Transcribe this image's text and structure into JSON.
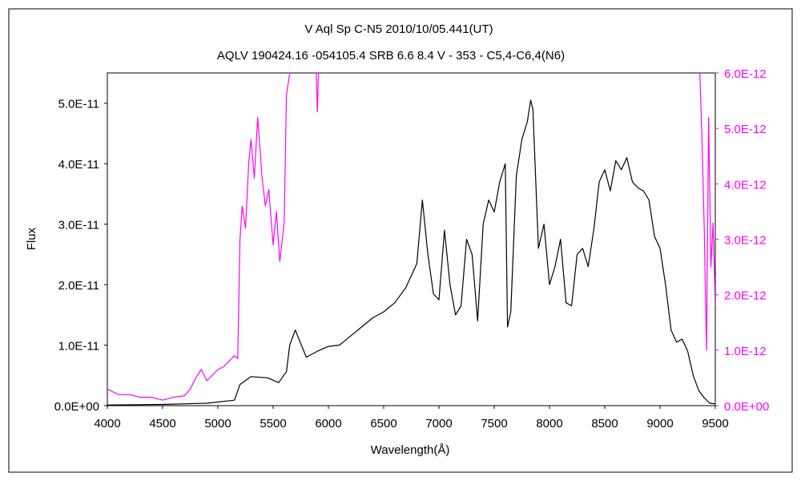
{
  "chart_data": {
    "type": "line",
    "title": "V Aql    Sp C-N5    2010/10/05.441(UT)",
    "subtitle": "AQLV 190424.16 -054105.4 SRB 6.6 8.4 V - 353 - C5,4-C6,4(N6)",
    "xlabel": "Wavelength(Å)",
    "ylabel": "Flux",
    "xlim": [
      4000,
      9500
    ],
    "ylim_left": [
      0,
      5.5e-11
    ],
    "ylim_right": [
      0,
      6e-12
    ],
    "x_ticks": [
      "4000",
      "4500",
      "5000",
      "5500",
      "6000",
      "6500",
      "7000",
      "7500",
      "8000",
      "8500",
      "9000",
      "9500"
    ],
    "y_ticks_left": [
      "0.0E+00",
      "1.0E-11",
      "2.0E-11",
      "3.0E-11",
      "4.0E-11",
      "5.0E-11"
    ],
    "y_ticks_right": [
      "0.0E+00",
      "1.0E-12",
      "2.0E-12",
      "3.0E-12",
      "4.0E-12",
      "5.0E-12",
      "6.0E-12"
    ],
    "grid": false,
    "colors": {
      "series_main": "#000000",
      "series_zoom": "#ff00ff",
      "frame": "#000000"
    },
    "series": [
      {
        "axis": "left",
        "color": "#000000",
        "x": [
          4000,
          4500,
          4900,
          5150,
          5200,
          5300,
          5450,
          5550,
          5620,
          5650,
          5700,
          5800,
          5900,
          6000,
          6100,
          6200,
          6300,
          6400,
          6500,
          6600,
          6700,
          6800,
          6850,
          6900,
          6950,
          7000,
          7050,
          7100,
          7150,
          7200,
          7250,
          7300,
          7350,
          7400,
          7450,
          7500,
          7550,
          7600,
          7620,
          7650,
          7700,
          7750,
          7800,
          7830,
          7850,
          7900,
          7950,
          8000,
          8050,
          8100,
          8150,
          8200,
          8250,
          8300,
          8350,
          8400,
          8450,
          8500,
          8550,
          8600,
          8650,
          8700,
          8750,
          8800,
          8850,
          8900,
          8950,
          9000,
          9050,
          9100,
          9150,
          9200,
          9250,
          9300,
          9350,
          9400,
          9450,
          9500
        ],
        "y": [
          1e-13,
          2e-13,
          4e-13,
          9e-13,
          3.5e-12,
          4.8e-12,
          4.6e-12,
          3.8e-12,
          5.6e-12,
          1e-11,
          1.25e-11,
          8e-12,
          9e-12,
          9.8e-12,
          1e-11,
          1.15e-11,
          1.3e-11,
          1.45e-11,
          1.55e-11,
          1.7e-11,
          1.95e-11,
          2.35e-11,
          3.4e-11,
          2.5e-11,
          1.85e-11,
          1.75e-11,
          2.9e-11,
          2e-11,
          1.5e-11,
          1.65e-11,
          2.75e-11,
          2.5e-11,
          1.4e-11,
          3e-11,
          3.4e-11,
          3.2e-11,
          3.7e-11,
          4e-11,
          1.3e-11,
          1.55e-11,
          3.8e-11,
          4.4e-11,
          4.7e-11,
          5.05e-11,
          4.9e-11,
          2.6e-11,
          3e-11,
          2e-11,
          2.3e-11,
          2.75e-11,
          1.7e-11,
          1.65e-11,
          2.5e-11,
          2.6e-11,
          2.3e-11,
          2.9e-11,
          3.7e-11,
          3.9e-11,
          3.55e-11,
          4.05e-11,
          3.9e-11,
          4.1e-11,
          3.7e-11,
          3.6e-11,
          3.55e-11,
          3.4e-11,
          2.8e-11,
          2.6e-11,
          2e-11,
          1.25e-11,
          1.05e-11,
          1.1e-11,
          9e-12,
          5e-12,
          2.5e-12,
          1.3e-12,
          4e-13,
          3e-13
        ]
      },
      {
        "axis": "right",
        "color": "#ff00ff",
        "x": [
          4000,
          4100,
          4200,
          4300,
          4400,
          4500,
          4600,
          4700,
          4750,
          4800,
          4850,
          4900,
          4950,
          5000,
          5050,
          5100,
          5150,
          5180,
          5200,
          5220,
          5250,
          5280,
          5300,
          5330,
          5360,
          5400,
          5430,
          5460,
          5500,
          5530,
          5560,
          5600,
          5620,
          5650,
          5660
        ],
        "y": [
          3e-13,
          2e-13,
          2e-13,
          1.5e-13,
          1.5e-13,
          1e-13,
          1.5e-13,
          1.8e-13,
          3e-13,
          5e-13,
          6.5e-13,
          4.5e-13,
          5.5e-13,
          6.5e-13,
          7e-13,
          8e-13,
          9e-13,
          8.5e-13,
          3e-12,
          3.6e-12,
          3.2e-12,
          4.4e-12,
          4.8e-12,
          4.1e-12,
          5.2e-12,
          4.1e-12,
          3.6e-12,
          3.9e-12,
          2.9e-12,
          3.5e-12,
          2.6e-12,
          3.3e-12,
          5.6e-12,
          6e-12,
          6e-12
        ]
      },
      {
        "axis": "right",
        "color": "#ff00ff",
        "x": [
          5890,
          5900,
          5910
        ],
        "y": [
          6e-12,
          5.3e-12,
          6e-12
        ]
      },
      {
        "axis": "right",
        "color": "#ff00ff",
        "x": [
          9360,
          9380,
          9400,
          9420,
          9440,
          9460,
          9480,
          9500
        ],
        "y": [
          6e-12,
          4.8e-12,
          3.2e-12,
          1e-12,
          5.2e-12,
          2.5e-12,
          3.3e-12,
          1.8e-12
        ]
      }
    ]
  }
}
